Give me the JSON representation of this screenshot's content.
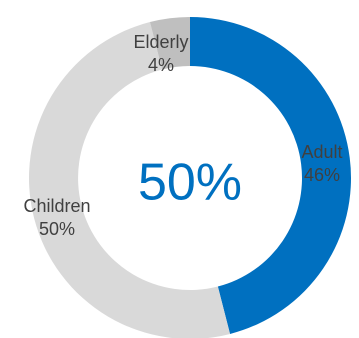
{
  "chart_data": {
    "type": "pie",
    "variant": "donut",
    "center_label": "50%",
    "categories": [
      "Adult",
      "Children",
      "Elderly"
    ],
    "values": [
      46,
      50,
      4
    ],
    "value_labels": [
      "46%",
      "50%",
      "4%"
    ],
    "colors": [
      "#0070C0",
      "#D9D9D9",
      "#BFBFBF"
    ],
    "start": "top",
    "direction": "clockwise",
    "legend": "none"
  }
}
